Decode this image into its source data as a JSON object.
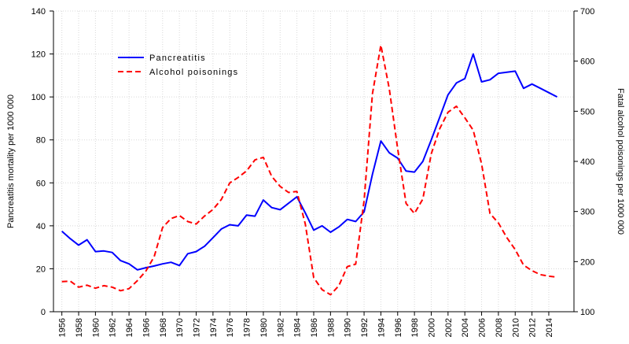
{
  "chart_data": {
    "type": "line",
    "x": [
      1956,
      1957,
      1958,
      1959,
      1960,
      1961,
      1962,
      1963,
      1964,
      1965,
      1966,
      1967,
      1968,
      1969,
      1970,
      1971,
      1972,
      1973,
      1974,
      1975,
      1976,
      1977,
      1978,
      1979,
      1980,
      1981,
      1982,
      1983,
      1984,
      1985,
      1986,
      1987,
      1988,
      1989,
      1990,
      1991,
      1992,
      1993,
      1994,
      1995,
      1996,
      1997,
      1998,
      1999,
      2000,
      2001,
      2002,
      2003,
      2004,
      2005,
      2006,
      2007,
      2008,
      2009,
      2010,
      2011,
      2012,
      2013,
      2014,
      2015
    ],
    "xlim": [
      1955,
      2017
    ],
    "xticks": [
      1956,
      1958,
      1960,
      1962,
      1964,
      1966,
      1968,
      1970,
      1972,
      1974,
      1976,
      1978,
      1980,
      1982,
      1984,
      1986,
      1988,
      1990,
      1992,
      1994,
      1996,
      1998,
      2000,
      2002,
      2004,
      2006,
      2008,
      2010,
      2012,
      2014
    ],
    "y_left": {
      "label": "Pancreatitis mortality per 1000 000",
      "ylim": [
        0,
        140
      ],
      "ticks": [
        0,
        20,
        40,
        60,
        80,
        100,
        120,
        140
      ]
    },
    "y_right": {
      "label": "Fatal alcohol poisonings per 1000 000",
      "ylim": [
        100,
        700
      ],
      "ticks": [
        100,
        200,
        300,
        400,
        500,
        600,
        700
      ]
    },
    "series": [
      {
        "name": "Pancreatitis",
        "y_axis": "left",
        "color": "#0000ff",
        "values": [
          37.5,
          34,
          31,
          33.5,
          28,
          28.3,
          27.6,
          23.8,
          22.3,
          19.5,
          20.5,
          21.3,
          22.3,
          23,
          21.5,
          27,
          28,
          30.5,
          34.5,
          38.5,
          40.5,
          40,
          45,
          44.5,
          52,
          48.5,
          47.5,
          50.5,
          53.5,
          46,
          38,
          40,
          37,
          39.5,
          43,
          42,
          46.5,
          64,
          79.5,
          74,
          71.5,
          65.5,
          65,
          70,
          80,
          90.5,
          101,
          106.5,
          108.5,
          120,
          107,
          108,
          111,
          111.5,
          112,
          104,
          106,
          104,
          102,
          100
        ]
      },
      {
        "name": "Alcohol poisonings",
        "y_axis": "right",
        "color": "#ff0000",
        "values": [
          160,
          161,
          149,
          153,
          147,
          152,
          149,
          142,
          146,
          162,
          181,
          210,
          268,
          286,
          292,
          280,
          275,
          291,
          304,
          324,
          357,
          368,
          381,
          403,
          408,
          370,
          350,
          338,
          340,
          275,
          168,
          144,
          134,
          152,
          190,
          195,
          322,
          535,
          632,
          545,
          425,
          316,
          296,
          325,
          415,
          465,
          498,
          510,
          487,
          462,
          395,
          296,
          277,
          248,
          224,
          193,
          182,
          174,
          171,
          169
        ]
      }
    ],
    "grid": true,
    "legend": "top-left"
  }
}
